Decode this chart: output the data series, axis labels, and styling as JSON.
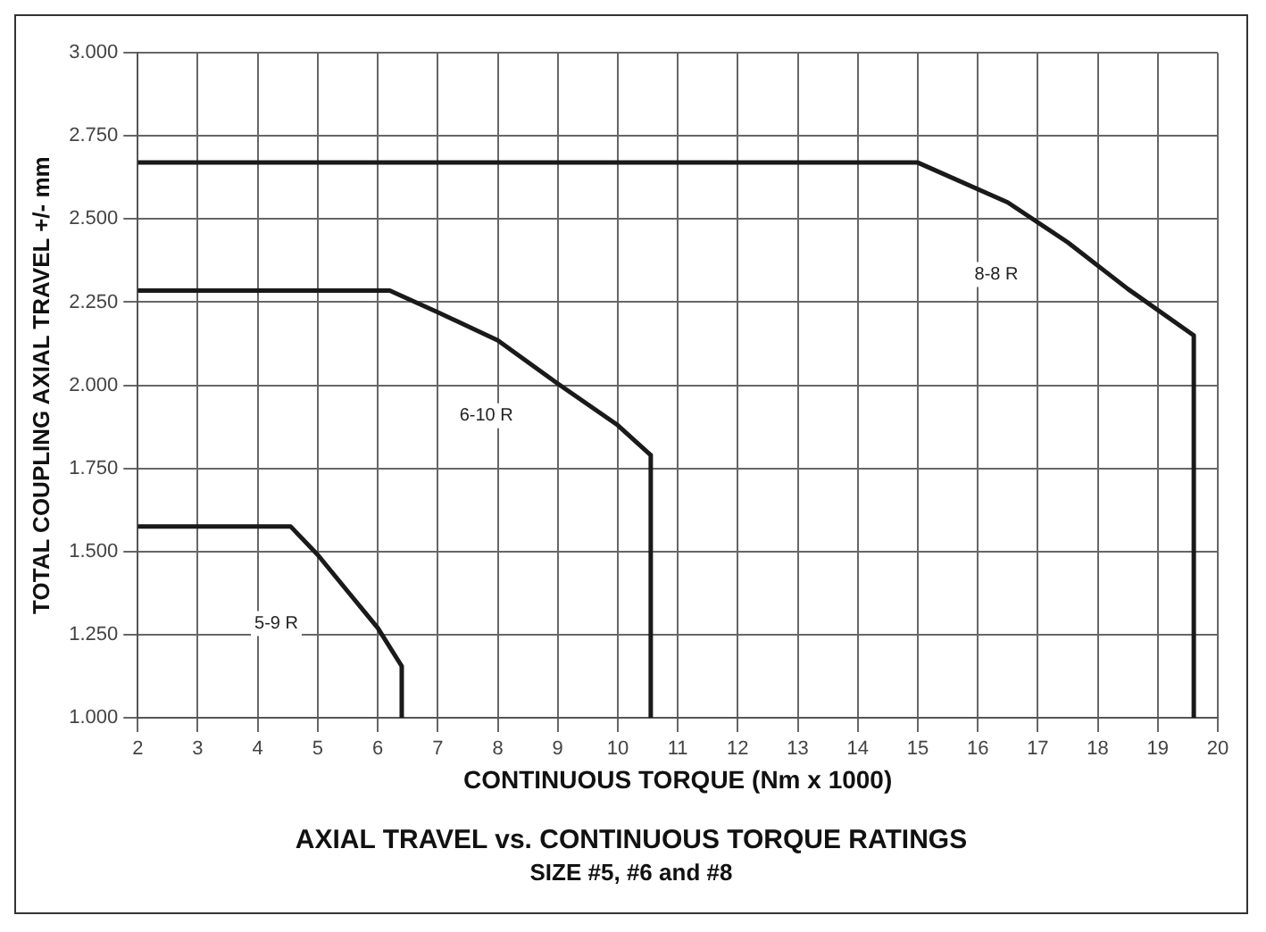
{
  "chart_data": {
    "type": "line",
    "title": "AXIAL TRAVEL vs. CONTINUOUS TORQUE RATINGS",
    "subtitle": "SIZE #5, #6 and #8",
    "xlabel": "CONTINUOUS TORQUE (Nm x 1000)",
    "ylabel": "TOTAL COUPLING AXIAL TRAVEL +/- mm",
    "series": [
      {
        "name": "5-9 R",
        "color": "#1a1a1a",
        "x": [
          2,
          4.55,
          5,
          5.5,
          6,
          6.4,
          6.4
        ],
        "values": [
          1.575,
          1.575,
          1.49,
          1.38,
          1.27,
          1.155,
          1
        ]
      },
      {
        "name": "6-10 R",
        "color": "#1a1a1a",
        "x": [
          2,
          6.2,
          7,
          8,
          9,
          10,
          10.55,
          10.55
        ],
        "values": [
          2.285,
          2.285,
          2.22,
          2.135,
          2.005,
          1.88,
          1.79,
          1
        ]
      },
      {
        "name": "8-8 R",
        "color": "#1a1a1a",
        "x": [
          2,
          15,
          16.5,
          17.5,
          18.5,
          19.6,
          19.6
        ],
        "values": [
          2.67,
          2.67,
          2.55,
          2.43,
          2.29,
          2.15,
          1
        ]
      }
    ],
    "xlim": [
      2,
      20
    ],
    "xticks": [
      2,
      3,
      4,
      5,
      6,
      7,
      8,
      9,
      10,
      11,
      12,
      13,
      14,
      15,
      16,
      17,
      18,
      19,
      20
    ],
    "ylim": [
      1,
      3
    ],
    "yticks": [
      {
        "value": 1,
        "label": "1.000"
      },
      {
        "value": 1.25,
        "label": "1.250"
      },
      {
        "value": 1.5,
        "label": "1.500"
      },
      {
        "value": 1.75,
        "label": "1.750"
      },
      {
        "value": 2,
        "label": "2.000"
      },
      {
        "value": 2.25,
        "label": "2.250"
      },
      {
        "value": 2.5,
        "label": "2.500"
      },
      {
        "value": 2.75,
        "label": "2.750"
      },
      {
        "value": 3,
        "label": "3.000"
      }
    ],
    "grid": true,
    "legend": false,
    "marker": "none",
    "line_style": "solid"
  }
}
